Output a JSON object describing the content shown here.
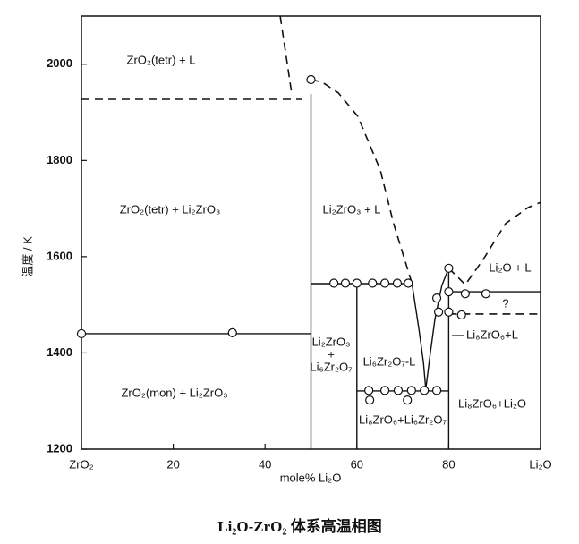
{
  "chart_data": {
    "type": "phase-diagram",
    "title": "Li₂O-ZrO₂ 体系高温相图",
    "x_label": "mole% Li₂O",
    "y_label": "温度 / K",
    "xlim": [
      0,
      100
    ],
    "ylim": [
      1200,
      2100
    ],
    "xticks": [
      {
        "value": 0,
        "label": "ZrO₂"
      },
      20,
      40,
      60,
      80,
      {
        "value": 100,
        "label": "Li₂O"
      }
    ],
    "yticks": [
      1200,
      1400,
      1600,
      1800,
      2000
    ],
    "color": "#111111",
    "lines": [
      {
        "dashed": true,
        "x": [
          0,
          48
        ],
        "y": [
          1927,
          1927
        ]
      },
      {
        "dashed": false,
        "x": [
          50,
          50
        ],
        "y": [
          1200,
          1938
        ]
      },
      {
        "dashed": false,
        "x": [
          0,
          50
        ],
        "y": [
          1440,
          1440
        ]
      },
      {
        "dashed": false,
        "x": [
          50,
          72
        ],
        "y": [
          1544,
          1544
        ]
      },
      {
        "dashed": false,
        "x": [
          60,
          60
        ],
        "y": [
          1200,
          1544
        ]
      },
      {
        "dashed": false,
        "x": [
          60,
          80
        ],
        "y": [
          1321,
          1321
        ]
      },
      {
        "dashed": false,
        "x": [
          80,
          80
        ],
        "y": [
          1200,
          1576
        ]
      },
      {
        "dashed": false,
        "x": [
          72,
          73.5,
          74.5,
          75,
          76,
          77,
          78.5,
          80
        ],
        "y": [
          1544,
          1450,
          1380,
          1325,
          1400,
          1470,
          1540,
          1576
        ]
      },
      {
        "dashed": false,
        "x": [
          80,
          100
        ],
        "y": [
          1527,
          1527
        ]
      },
      {
        "dashed": true,
        "x": [
          80,
          100
        ],
        "y": [
          1481,
          1481
        ]
      },
      {
        "dashed": true,
        "x": [
          43.3,
          45.8
        ],
        "y": [
          2100,
          1939
        ]
      },
      {
        "dashed": true,
        "x": [
          50,
          52.4,
          56,
          60.2,
          65.1,
          68,
          71,
          72
        ],
        "y": [
          1968,
          1963,
          1940,
          1892,
          1780,
          1669,
          1576,
          1544
        ]
      },
      {
        "dashed": true,
        "x": [
          80,
          83.6,
          87.5,
          92.4,
          97.3,
          100
        ],
        "y": [
          1576,
          1542,
          1594,
          1669,
          1702,
          1713
        ]
      }
    ],
    "points": {
      "x": [
        50,
        0,
        32.9,
        55,
        57.5,
        60,
        63.4,
        66.1,
        68.8,
        71.2,
        62.6,
        66.1,
        69,
        71.9,
        74.7,
        77.4,
        62.8,
        71,
        80,
        77.4,
        80,
        83.6,
        88.1,
        77.8,
        80,
        82.8
      ],
      "y": [
        1968,
        1440,
        1442,
        1545,
        1545,
        1545,
        1545,
        1545,
        1545,
        1545,
        1322,
        1322,
        1322,
        1322,
        1322,
        1322,
        1302,
        1302,
        1576,
        1514,
        1527,
        1523,
        1523,
        1485,
        1485,
        1479
      ]
    },
    "annotations": [
      "ZrO₂(tetr) + L",
      "ZrO₂(tetr) + Li₂ZrO₃",
      "Li₂ZrO₃ + L",
      "ZrO₂(mon) + Li₂ZrO₃",
      "Li₂O + L",
      "?",
      "Li₈ZrO₆+L",
      "Li₂ZrO₃",
      "+",
      "Li₆Zr₂O₇",
      "Li₆Zr₂O₇-L",
      "Li₈ZrO₆+Li₆Zr₂O₇",
      "Li₈ZrO₆+Li₂O"
    ]
  }
}
